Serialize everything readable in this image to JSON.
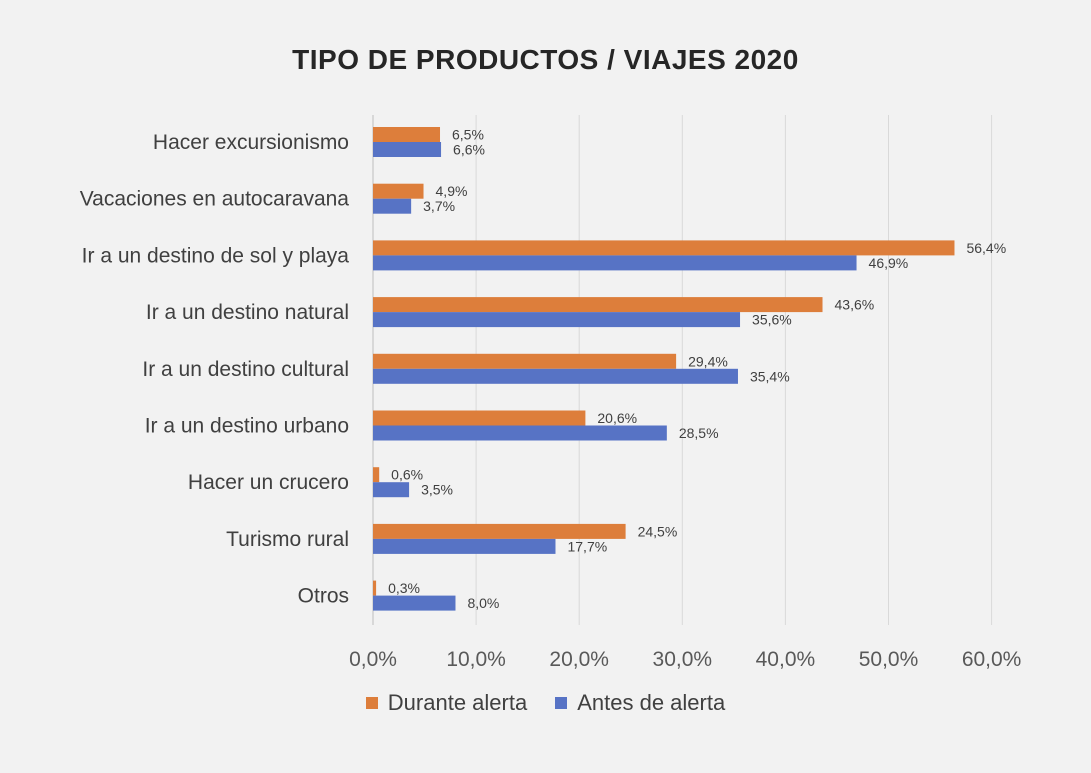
{
  "chart_data": {
    "type": "bar",
    "orientation": "horizontal",
    "title": "TIPO DE PRODUCTOS / VIAJES 2020",
    "categories": [
      "Hacer excursionismo",
      "Vacaciones en autocaravana",
      "Ir a un destino de sol y playa",
      "Ir a un destino natural",
      "Ir a un destino cultural",
      "Ir a un destino urbano",
      "Hacer un crucero",
      "Turismo rural",
      "Otros"
    ],
    "series": [
      {
        "name": "Durante alerta",
        "color": "#dd7e3b",
        "values": [
          6.5,
          4.9,
          56.4,
          43.6,
          29.4,
          20.6,
          0.6,
          24.5,
          0.3
        ],
        "labels": [
          "6,5%",
          "4,9%",
          "56,4%",
          "43,6%",
          "29,4%",
          "20,6%",
          "0,6%",
          "24,5%",
          "0,3%"
        ]
      },
      {
        "name": "Antes de alerta",
        "color": "#5773c5",
        "values": [
          6.6,
          3.7,
          46.9,
          35.6,
          35.4,
          28.5,
          3.5,
          17.7,
          8.0
        ],
        "labels": [
          "6,6%",
          "3,7%",
          "46,9%",
          "35,6%",
          "35,4%",
          "28,5%",
          "3,5%",
          "17,7%",
          "8,0%"
        ]
      }
    ],
    "xlim": [
      0,
      60
    ],
    "xticks": [
      0,
      10,
      20,
      30,
      40,
      50,
      60
    ],
    "xtick_labels": [
      "0,0%",
      "10,0%",
      "20,0%",
      "30,0%",
      "40,0%",
      "50,0%",
      "60,0%"
    ],
    "grid": true,
    "legend_position": "bottom"
  }
}
